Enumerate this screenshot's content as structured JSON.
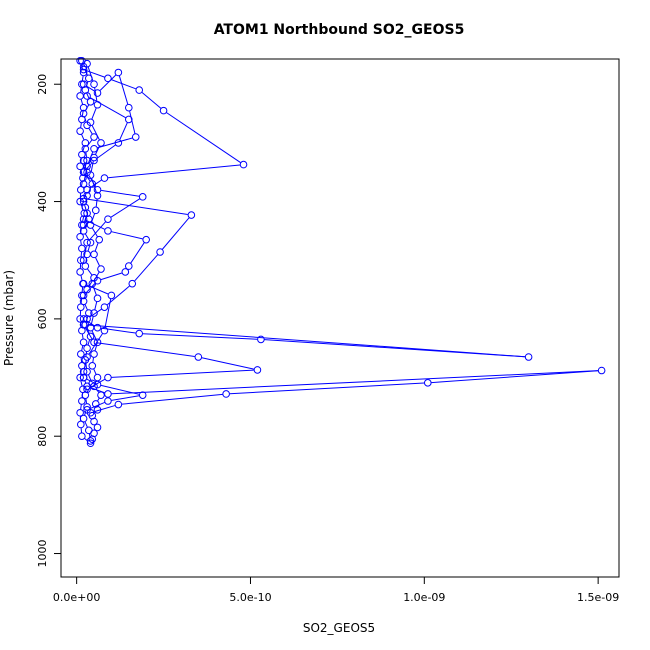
{
  "chart_data": {
    "type": "line",
    "title": "ATOM1 Northbound SO2_GEOS5",
    "xlabel": "SO2_GEOS5",
    "ylabel": "Pressure (mbar)",
    "xlim": [
      -4.5e-11,
      1.56e-09
    ],
    "ylim": [
      1040,
      157
    ],
    "y_reversed": true,
    "x_ticks": [
      0,
      5e-10,
      1e-09,
      1.5e-09
    ],
    "x_tick_labels": [
      "0.0e+00",
      "5.0e-10",
      "1.0e-09",
      "1.5e-09"
    ],
    "y_ticks": [
      200,
      400,
      600,
      800,
      1000
    ],
    "y_tick_labels": [
      "200",
      "400",
      "600",
      "800",
      "1000"
    ],
    "grid": false,
    "marker": "open-circle",
    "line_color": "#0000ff",
    "series": [
      {
        "x": [
          1e-11,
          2e-11,
          1.5e-11,
          1e-11,
          2e-11,
          1.5e-11,
          1e-11,
          2.5e-11,
          1.5e-11,
          1e-11,
          1.8e-11,
          1.2e-11,
          1e-11,
          2.2e-11,
          1.5e-11,
          1e-11,
          1.5e-11,
          1.2e-11,
          1e-11,
          1.8e-11,
          1.5e-11,
          1.2e-11,
          1e-11,
          1.5e-11,
          2e-11,
          1.2e-11,
          1.5e-11,
          1e-11,
          1.8e-11,
          1.5e-11,
          1e-11,
          1.2e-11,
          1.5e-11,
          4e-11
        ],
        "y": [
          160,
          180,
          200,
          220,
          240,
          260,
          280,
          300,
          320,
          340,
          360,
          380,
          400,
          420,
          440,
          460,
          480,
          500,
          520,
          540,
          560,
          580,
          600,
          620,
          640,
          660,
          680,
          700,
          720,
          740,
          760,
          780,
          800,
          812
        ]
      },
      {
        "x": [
          2e-11,
          3.5e-11,
          2.5e-11,
          4e-11,
          2e-11,
          3e-11,
          5e-11,
          2.5e-11,
          3e-11,
          2e-11,
          4.5e-11,
          3e-11,
          2.5e-11,
          3.5e-11,
          2e-11,
          4e-11,
          3e-11,
          2.5e-11,
          5e-11,
          3e-11,
          2e-11,
          3.5e-11,
          2.5e-11,
          4e-11,
          3e-11,
          2.5e-11,
          3e-11,
          4.5e-11,
          2.5e-11,
          3e-11,
          2e-11,
          3.5e-11,
          4e-11
        ],
        "y": [
          170,
          190,
          210,
          230,
          250,
          270,
          290,
          310,
          330,
          350,
          370,
          390,
          410,
          430,
          450,
          470,
          490,
          510,
          530,
          550,
          570,
          590,
          610,
          630,
          650,
          670,
          690,
          710,
          730,
          750,
          770,
          790,
          808
        ]
      },
      {
        "x": [
          3e-11,
          5e-11,
          6e-11,
          4e-11,
          7e-11,
          5e-11,
          4e-11,
          6e-11,
          5.5e-11,
          4e-11,
          6.5e-11,
          5e-11,
          7e-11,
          4.5e-11,
          6e-11,
          5e-11,
          4e-11,
          6e-11,
          5e-11,
          4.5e-11,
          6e-11,
          5e-11,
          7e-11,
          5.5e-11,
          6e-11,
          4.5e-11,
          5e-11,
          6e-11,
          5e-11,
          4.5e-11
        ],
        "y": [
          165,
          200,
          235,
          265,
          300,
          325,
          355,
          390,
          415,
          440,
          465,
          490,
          515,
          540,
          565,
          590,
          615,
          640,
          660,
          680,
          700,
          715,
          730,
          745,
          755,
          765,
          775,
          785,
          795,
          805
        ]
      },
      {
        "x": [
          1.5e-11,
          2e-11,
          9e-11,
          1.8e-10,
          2.5e-10,
          4.8e-10,
          8e-11,
          3e-11,
          2e-11,
          3e-11,
          2e-11
        ],
        "y": [
          160,
          175,
          190,
          210,
          245,
          337,
          360,
          380,
          400,
          420,
          440
        ]
      },
      {
        "x": [
          2e-11,
          6e-11,
          1.2e-10,
          1.5e-10,
          1.7e-10,
          5e-11,
          3e-11,
          2e-11
        ],
        "y": [
          200,
          215,
          180,
          240,
          290,
          310,
          340,
          370
        ]
      },
      {
        "x": [
          2e-11,
          3e-11,
          6e-11,
          1.9e-10,
          9e-11,
          3e-11,
          2e-11
        ],
        "y": [
          330,
          350,
          380,
          392,
          430,
          470,
          500
        ]
      },
      {
        "x": [
          2e-11,
          3.3e-10,
          2.4e-10,
          1.6e-10,
          8e-11,
          3e-11
        ],
        "y": [
          395,
          423,
          486,
          540,
          580,
          600
        ]
      },
      {
        "x": [
          2e-11,
          9e-11,
          2e-10,
          1.5e-10,
          1.4e-10,
          6e-11,
          2e-11
        ],
        "y": [
          430,
          450,
          465,
          510,
          520,
          535,
          560
        ]
      },
      {
        "x": [
          2e-11,
          6e-11,
          1.8e-10,
          5.3e-10,
          1.3e-09,
          2e-11
        ],
        "y": [
          600,
          615,
          625,
          635,
          665,
          610
        ]
      },
      {
        "x": [
          2e-11,
          5e-11,
          3.5e-10,
          5.2e-10,
          9e-11,
          3e-11
        ],
        "y": [
          610,
          640,
          665,
          687,
          700,
          720
        ]
      },
      {
        "x": [
          2e-11,
          3e-11,
          9e-11,
          1.51e-09,
          1.01e-09,
          4.3e-10,
          1.2e-10,
          4e-11
        ],
        "y": [
          700,
          715,
          728,
          688,
          709,
          728,
          746,
          760
        ]
      },
      {
        "x": [
          2e-11,
          6e-11,
          1.9e-10,
          9e-11,
          3e-11
        ],
        "y": [
          700,
          712,
          730,
          740,
          755
        ]
      },
      {
        "x": [
          2e-11,
          1e-10,
          8e-11,
          3e-11,
          2e-11
        ],
        "y": [
          540,
          560,
          620,
          665,
          690
        ]
      },
      {
        "x": [
          3e-11,
          1.5e-10,
          1.2e-10,
          5e-11,
          2e-11
        ],
        "y": [
          220,
          260,
          300,
          330,
          350
        ]
      }
    ]
  }
}
